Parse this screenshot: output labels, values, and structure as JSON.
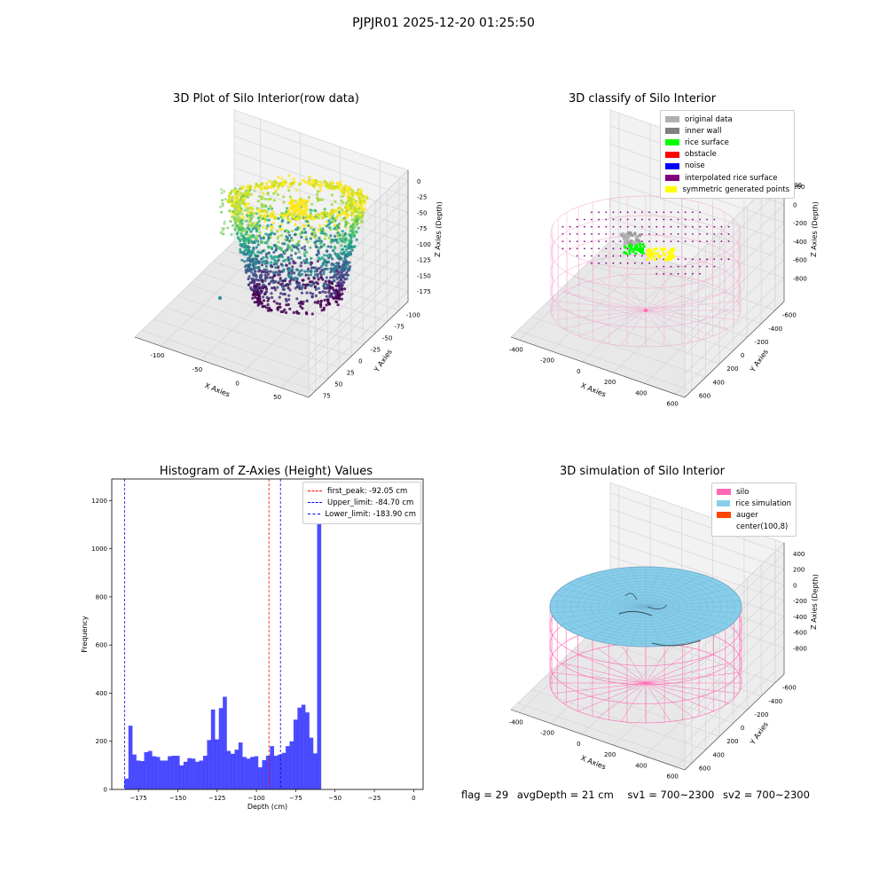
{
  "suptitle": "PJPJR01 2025-12-20 01:25:50",
  "chart_data": [
    {
      "type": "scatter",
      "title": "3D Plot of Silo Interior(row data)",
      "xlabel": "X Axies",
      "ylabel": "Y Axies",
      "zlabel": "Z Axies (Depth)",
      "xticks": [
        "-100",
        "-50",
        "0",
        "50"
      ],
      "yticks": [
        "75",
        "50",
        "25",
        "0",
        "-25",
        "-50",
        "-75",
        "-100"
      ],
      "zticks": [
        "0",
        "-25",
        "-50",
        "-75",
        "-100",
        "-125",
        "-150",
        "-175"
      ],
      "colormap": "viridis"
    },
    {
      "type": "scatter",
      "title": "3D classify of Silo Interior",
      "xlabel": "X Axies",
      "ylabel": "Y Axies",
      "zlabel": "Z Axies (Depth)",
      "xticks": [
        "-400",
        "-200",
        "0",
        "200",
        "400",
        "600"
      ],
      "yticks": [
        "600",
        "400",
        "200",
        "0",
        "-200",
        "-400",
        "-600"
      ],
      "zticks": [
        "200",
        "0",
        "-200",
        "-400",
        "-600",
        "-800"
      ],
      "ztick_top_partial": "00",
      "legend": [
        {
          "label": "original data",
          "color": "#b0b0b0"
        },
        {
          "label": "inner wall",
          "color": "#808080"
        },
        {
          "label": "rice surface",
          "color": "#00ff00"
        },
        {
          "label": "obstacle",
          "color": "#ff0000"
        },
        {
          "label": "noise",
          "color": "#0000ff"
        },
        {
          "label": "interpolated rice surface",
          "color": "#800080"
        },
        {
          "label": "symmetric generated points",
          "color": "#ffff00"
        }
      ]
    },
    {
      "type": "bar",
      "title": "Histogram of Z-Axies (Height) Values",
      "xlabel": "Depth (cm)",
      "ylabel": "Frequency",
      "xlim": [
        -192,
        6
      ],
      "ylim": [
        0,
        1290
      ],
      "xticks": [
        -175,
        -150,
        -125,
        -100,
        -75,
        -50,
        -25,
        0
      ],
      "yticks": [
        0,
        200,
        400,
        600,
        800,
        1000,
        1200
      ],
      "bin_start": -183.9,
      "bin_width": 2.5,
      "values": [
        45,
        265,
        145,
        120,
        118,
        155,
        160,
        138,
        135,
        120,
        120,
        138,
        140,
        140,
        100,
        115,
        130,
        128,
        115,
        120,
        140,
        205,
        332,
        208,
        338,
        385,
        160,
        148,
        165,
        195,
        135,
        128,
        135,
        138,
        92,
        122,
        140,
        180,
        140,
        145,
        152,
        180,
        200,
        290,
        340,
        352,
        320,
        215,
        150,
        1230
      ],
      "bar_color": "#0000ff",
      "vlines": [
        {
          "label": "first_peak: -92.05 cm",
          "x": -92.05,
          "color": "#ff0000"
        },
        {
          "label": "Upper_limit: -84.70 cm",
          "x": -84.7,
          "color": "#0000ff"
        },
        {
          "label": "Lower_limit: -183.90 cm",
          "x": -183.9,
          "color": "#0000ff"
        }
      ],
      "legend_position": "upper right"
    },
    {
      "type": "surface",
      "title": "3D simulation of Silo Interior",
      "xlabel": "X Axies",
      "ylabel": "Y Axies",
      "zlabel": "Z Axies (Depth)",
      "xticks": [
        "-400",
        "-200",
        "0",
        "200",
        "400",
        "600"
      ],
      "yticks": [
        "600",
        "400",
        "200",
        "0",
        "-200",
        "-400",
        "-600"
      ],
      "zticks": [
        "400",
        "200",
        "0",
        "-200",
        "-400",
        "-600",
        "-800"
      ],
      "legend": [
        {
          "label": "silo",
          "color": "#ff69b4"
        },
        {
          "label": "rice simulation",
          "color": "#87ceeb"
        },
        {
          "label": "auger",
          "color": "#ff4500"
        },
        {
          "label": "center(100,8)",
          "color": "#ffffff"
        }
      ]
    }
  ],
  "footer": {
    "flag": "flag = 29",
    "avg": "avgDepth = 21 cm",
    "sv1": "sv1 = 700~2300",
    "sv2": "sv2 = 700~2300"
  }
}
